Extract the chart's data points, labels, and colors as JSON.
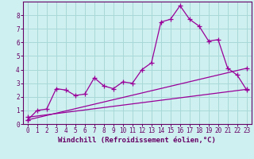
{
  "line1_x": [
    0,
    1,
    2,
    3,
    4,
    5,
    6,
    7,
    8,
    9,
    10,
    11,
    12,
    13,
    14,
    15,
    16,
    17,
    18,
    19,
    20,
    21,
    22,
    23
  ],
  "line1_y": [
    0.3,
    1.0,
    1.1,
    2.6,
    2.5,
    2.1,
    2.2,
    3.4,
    2.8,
    2.6,
    3.1,
    3.0,
    4.0,
    4.5,
    7.5,
    7.7,
    8.7,
    7.7,
    7.2,
    6.1,
    6.2,
    4.1,
    3.6,
    2.5
  ],
  "line2_x": [
    0,
    23
  ],
  "line2_y": [
    0.3,
    4.1
  ],
  "line3_x": [
    0,
    23
  ],
  "line3_y": [
    0.5,
    2.55
  ],
  "color": "#990099",
  "bg_color": "#cff0f0",
  "grid_color": "#a8d8d8",
  "xlim": [
    -0.5,
    23.5
  ],
  "ylim": [
    0,
    9
  ],
  "yticks": [
    0,
    1,
    2,
    3,
    4,
    5,
    6,
    7,
    8
  ],
  "xticks": [
    0,
    1,
    2,
    3,
    4,
    5,
    6,
    7,
    8,
    9,
    10,
    11,
    12,
    13,
    14,
    15,
    16,
    17,
    18,
    19,
    20,
    21,
    22,
    23
  ],
  "xlabel": "Windchill (Refroidissement éolien,°C)",
  "marker": "+",
  "markersize": 4,
  "linewidth": 0.9,
  "xlabel_fontsize": 6.5,
  "tick_fontsize": 5.5,
  "axis_color": "#660066"
}
